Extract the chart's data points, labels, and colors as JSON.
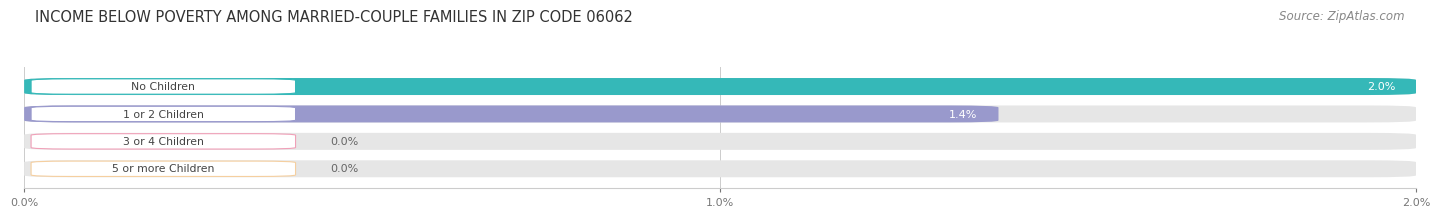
{
  "title": "INCOME BELOW POVERTY AMONG MARRIED-COUPLE FAMILIES IN ZIP CODE 06062",
  "source": "Source: ZipAtlas.com",
  "categories": [
    "No Children",
    "1 or 2 Children",
    "3 or 4 Children",
    "5 or more Children"
  ],
  "values": [
    2.0,
    1.4,
    0.0,
    0.0
  ],
  "bar_colors": [
    "#35b8b8",
    "#9999cc",
    "#f0a0b8",
    "#f5cfa0"
  ],
  "label_colors": [
    "white",
    "white",
    "#777777",
    "#777777"
  ],
  "xlim_data": [
    0.0,
    2.0
  ],
  "xticks": [
    0.0,
    1.0,
    2.0
  ],
  "xtick_labels": [
    "0.0%",
    "1.0%",
    "2.0%"
  ],
  "title_fontsize": 10.5,
  "source_fontsize": 8.5,
  "bar_height": 0.62,
  "background_color": "#ffffff",
  "bar_bg_color": "#e6e6e6"
}
